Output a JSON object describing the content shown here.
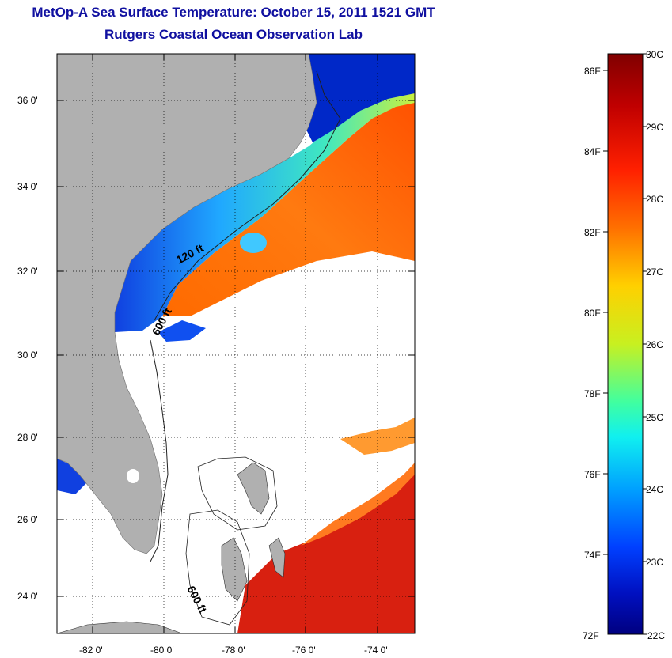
{
  "header": {
    "title": "MetOp-A Sea Surface Temperature:  October 15, 2011 1521 GMT",
    "subtitle": "Rutgers Coastal Ocean Observation Lab"
  },
  "map": {
    "lat_range": [
      23,
      37
    ],
    "lon_range": [
      -83,
      -73
    ],
    "lat_labels": [
      "36 0'",
      "34 0'",
      "32 0'",
      "30 0'",
      "28 0'",
      "26 0'",
      "24 0'"
    ],
    "lon_labels": [
      "-82 0'",
      "-80 0'",
      "-78 0'",
      "-76 0'",
      "-74 0'"
    ],
    "depth_labels": [
      "120 ft",
      "600 ft",
      "600 ft"
    ],
    "land_color": "#b0b0b0",
    "ocean_color": "#ffffff"
  },
  "colorbar": {
    "range_c": [
      22,
      30
    ],
    "celsius_labels": [
      "30C",
      "29C",
      "28C",
      "27C",
      "26C",
      "25C",
      "24C",
      "23C",
      "22C"
    ],
    "fahrenheit_labels": [
      "86F",
      "84F",
      "82F",
      "80F",
      "78F",
      "76F",
      "74F",
      "72F"
    ],
    "colors": [
      "#800000",
      "#cc0000",
      "#ff3000",
      "#ff8c00",
      "#ffd200",
      "#d8f000",
      "#80ff60",
      "#20ffd0",
      "#00c8ff",
      "#0070ff",
      "#0010d0",
      "#000090"
    ]
  }
}
